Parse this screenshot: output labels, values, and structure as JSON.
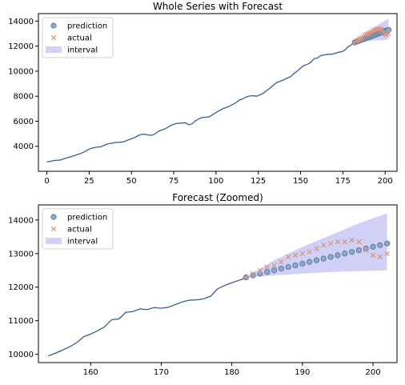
{
  "colors": {
    "series_line": "#3b5f8c",
    "prediction_face": "#8ea8c8",
    "prediction_edge": "#4f6f98",
    "actual": "#d9957a",
    "interval": "#b8b8f5",
    "legend_border": "#d0d0d0"
  },
  "chart_data": [
    {
      "type": "line",
      "title": "Whole Series with Forecast",
      "xlim": [
        -5,
        207
      ],
      "ylim": [
        2000,
        14600
      ],
      "xticks": [
        0,
        25,
        50,
        75,
        100,
        125,
        150,
        175,
        200
      ],
      "yticks": [
        4000,
        6000,
        8000,
        10000,
        12000,
        14000
      ],
      "legend": {
        "position": "upper-left",
        "entries": [
          "prediction",
          "actual",
          "interval"
        ]
      },
      "grid": false,
      "history": {
        "x": [
          0,
          2,
          4,
          6,
          8,
          10,
          12,
          14,
          16,
          18,
          20,
          22,
          24,
          26,
          28,
          30,
          32,
          34,
          36,
          38,
          40,
          42,
          44,
          46,
          48,
          50,
          52,
          54,
          56,
          58,
          60,
          62,
          64,
          66,
          68,
          70,
          72,
          74,
          76,
          78,
          80,
          82,
          84,
          86,
          88,
          90,
          92,
          94,
          96,
          98,
          100,
          102,
          104,
          106,
          108,
          110,
          112,
          114,
          116,
          118,
          120,
          122,
          124,
          126,
          128,
          130,
          132,
          134,
          136,
          138,
          140,
          142,
          144,
          146,
          148,
          150,
          152,
          154,
          156,
          158,
          160,
          162,
          164,
          166,
          168,
          170,
          172,
          174,
          176,
          178,
          180,
          182
        ],
        "y": [
          2750,
          2790,
          2860,
          2880,
          2900,
          2990,
          3080,
          3160,
          3240,
          3340,
          3420,
          3540,
          3700,
          3820,
          3890,
          3940,
          3960,
          4080,
          4190,
          4240,
          4290,
          4320,
          4330,
          4380,
          4500,
          4600,
          4700,
          4860,
          4950,
          4960,
          4900,
          4870,
          5000,
          5200,
          5300,
          5400,
          5560,
          5700,
          5800,
          5840,
          5850,
          5880,
          5720,
          5800,
          6050,
          6200,
          6300,
          6320,
          6350,
          6520,
          6700,
          6850,
          7000,
          7100,
          7200,
          7350,
          7500,
          7700,
          7800,
          7950,
          8020,
          8040,
          8000,
          8100,
          8250,
          8450,
          8650,
          8900,
          9100,
          9200,
          9300,
          9450,
          9550,
          9800,
          10000,
          10250,
          10450,
          10550,
          10700,
          11000,
          11050,
          11250,
          11300,
          11350,
          11350,
          11400,
          11500,
          11550,
          11650,
          11950,
          12100,
          12280
        ]
      },
      "prediction": {
        "x": [
          182,
          183,
          184,
          185,
          186,
          187,
          188,
          189,
          190,
          191,
          192,
          193,
          194,
          195,
          196,
          197,
          198,
          199,
          200,
          201,
          202
        ],
        "y": [
          12290,
          12350,
          12400,
          12450,
          12500,
          12550,
          12600,
          12650,
          12700,
          12750,
          12800,
          12850,
          12900,
          12950,
          13000,
          13050,
          13100,
          13150,
          13200,
          13250,
          13300
        ]
      },
      "actual": {
        "x": [
          182,
          183,
          184,
          185,
          186,
          187,
          188,
          189,
          190,
          191,
          192,
          193,
          194,
          195,
          196,
          197,
          198,
          199,
          200,
          201,
          202
        ],
        "y": [
          12280,
          12400,
          12500,
          12600,
          12650,
          12750,
          12900,
          12950,
          13000,
          13050,
          13150,
          13250,
          13300,
          13350,
          13350,
          13400,
          13350,
          13100,
          12950,
          12900,
          13000
        ]
      },
      "interval": {
        "x": [
          182,
          186,
          190,
          194,
          198,
          202
        ],
        "lower": [
          12280,
          12350,
          12400,
          12450,
          12480,
          12500
        ],
        "upper": [
          12300,
          12800,
          13200,
          13550,
          13900,
          14200
        ]
      }
    },
    {
      "type": "line",
      "title": "Forecast (Zoomed)",
      "xlim": [
        152.6,
        203.4
      ],
      "ylim": [
        9750,
        14450
      ],
      "xticks": [
        160,
        170,
        180,
        190,
        200
      ],
      "yticks": [
        10000,
        11000,
        12000,
        13000,
        14000
      ],
      "legend": {
        "position": "upper-left",
        "entries": [
          "prediction",
          "actual",
          "interval"
        ]
      },
      "grid": false,
      "history": {
        "x": [
          154,
          155,
          156,
          157,
          158,
          159,
          160,
          161,
          162,
          163,
          164,
          165,
          166,
          167,
          168,
          169,
          170,
          171,
          172,
          173,
          174,
          175,
          176,
          177,
          178,
          179,
          180,
          181,
          182
        ],
        "y": [
          9950,
          10030,
          10120,
          10220,
          10340,
          10520,
          10600,
          10700,
          10820,
          11030,
          11050,
          11250,
          11270,
          11350,
          11330,
          11390,
          11370,
          11400,
          11480,
          11560,
          11610,
          11620,
          11650,
          11730,
          11950,
          12050,
          12130,
          12200,
          12280
        ]
      },
      "prediction": {
        "x": [
          182,
          183,
          184,
          185,
          186,
          187,
          188,
          189,
          190,
          191,
          192,
          193,
          194,
          195,
          196,
          197,
          198,
          199,
          200,
          201,
          202
        ],
        "y": [
          12290,
          12350,
          12400,
          12450,
          12500,
          12550,
          12600,
          12650,
          12700,
          12750,
          12800,
          12850,
          12900,
          12950,
          13000,
          13050,
          13100,
          13150,
          13200,
          13250,
          13300
        ]
      },
      "actual": {
        "x": [
          182,
          183,
          184,
          185,
          186,
          187,
          188,
          189,
          190,
          191,
          192,
          193,
          194,
          195,
          196,
          197,
          198,
          199,
          200,
          201,
          202
        ],
        "y": [
          12280,
          12400,
          12500,
          12600,
          12650,
          12750,
          12900,
          12950,
          13000,
          13050,
          13150,
          13250,
          13300,
          13350,
          13350,
          13400,
          13350,
          13100,
          12950,
          12900,
          13000
        ]
      },
      "interval": {
        "x": [
          182,
          186,
          190,
          194,
          198,
          202
        ],
        "lower": [
          12280,
          12350,
          12400,
          12450,
          12480,
          12500
        ],
        "upper": [
          12300,
          12800,
          13200,
          13550,
          13900,
          14200
        ]
      }
    }
  ]
}
